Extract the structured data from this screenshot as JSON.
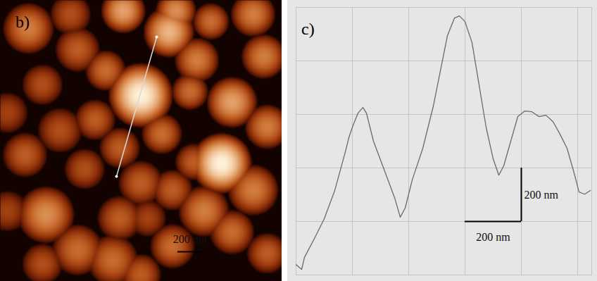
{
  "chart_data": [
    {
      "type": "afm_image",
      "title": "b)",
      "xlim": [
        0,
        2286
      ],
      "ylim": [
        0,
        2280
      ],
      "zlim": [
        0,
        1000
      ],
      "tick_labels": false,
      "grains": {
        "x": [
          1140,
          1796,
          1881,
          1368,
          998,
          1425,
          1596,
          371,
          627,
          228,
          627,
          855,
          342,
          770,
          485,
          200,
          969,
          1311,
          1539,
          2138,
          2166,
          2052,
          1653,
          1397,
          1140,
          969,
          912,
          1397,
          1881,
          2166,
          342,
          57,
          57,
          2052,
          1710,
          684,
          1197,
          1568,
          1140,
          570
        ],
        "y": [
          770,
          1322,
          827,
          257,
          86,
          86,
          485,
          1739,
          2024,
          228,
          399,
          570,
          684,
          969,
          1055,
          1254,
          1197,
          1083,
          741,
          456,
          1026,
          1539,
          1710,
          1539,
          1482,
          1767,
          2109,
          1995,
          1881,
          2052,
          2138,
          912,
          1710,
          114,
          171,
          1368,
          1767,
          1311,
          2223,
          114
        ],
        "radius": [
          182,
          171,
          143,
          143,
          125,
          114,
          125,
          160,
          143,
          143,
          125,
          114,
          114,
          114,
          125,
          125,
          114,
          114,
          103,
          125,
          125,
          143,
          143,
          114,
          125,
          125,
          143,
          125,
          125,
          114,
          114,
          114,
          114,
          125,
          103,
          114,
          103,
          103,
          114,
          114
        ],
        "height": [
          1000,
          1000,
          800,
          850,
          800,
          750,
          700,
          750,
          650,
          700,
          600,
          650,
          550,
          600,
          550,
          600,
          600,
          650,
          650,
          700,
          700,
          700,
          700,
          600,
          600,
          600,
          650,
          650,
          650,
          600,
          550,
          500,
          500,
          700,
          650,
          550,
          500,
          600,
          600,
          550
        ]
      },
      "profile_line": {
        "x": [
          1269,
          943
        ],
        "y": [
          297,
          1429
        ]
      },
      "scale_bar": {
        "length": 200,
        "label": "200 nm"
      }
    },
    {
      "type": "line",
      "title": "c)",
      "x": [
        0,
        20,
        30,
        62.5,
        100,
        137.5,
        175,
        187.5,
        200,
        220,
        237.5,
        250,
        275,
        312.5,
        350,
        370,
        387.5,
        412.5,
        450,
        487.5,
        512.5,
        537.5,
        562.5,
        580,
        600,
        625,
        650,
        675,
        700,
        720,
        737.5,
        762.5,
        787.5,
        812.5,
        837.5,
        862.5,
        887.5,
        912.5,
        937.5,
        962.5,
        987.5,
        1005,
        1025,
        1045
      ],
      "values": [
        39,
        21,
        66,
        131,
        210,
        316,
        460,
        513,
        552,
        605,
        626,
        605,
        500,
        395,
        289,
        216,
        250,
        355,
        473,
        631,
        763,
        894,
        960,
        968,
        947,
        868,
        710,
        552,
        434,
        373,
        408,
        500,
        592,
        613,
        610,
        592,
        597,
        573,
        526,
        473,
        381,
        310,
        302,
        316
      ],
      "color": "#6a6a6a",
      "xlim": [
        0,
        1050
      ],
      "ylim": [
        0,
        1000
      ],
      "xticks": [
        0,
        200,
        400,
        600,
        800,
        1000
      ],
      "yticks": [
        0,
        200,
        400,
        600,
        800,
        1000
      ],
      "grid": true,
      "tick_labels": false,
      "scale_bars": {
        "origin": [
          800,
          200
        ],
        "length": 200,
        "labels": [
          "200 nm",
          "200 nm"
        ]
      }
    }
  ]
}
